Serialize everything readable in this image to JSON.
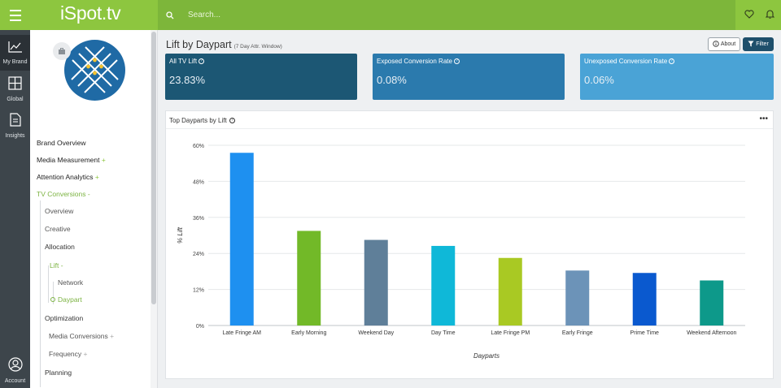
{
  "topbar": {
    "logo": "iSpot.tv",
    "search_placeholder": "Search..."
  },
  "rail": {
    "items": [
      {
        "label": "My Brand",
        "icon": "chart-line-icon"
      },
      {
        "label": "Global",
        "icon": "grid-icon"
      },
      {
        "label": "Insights",
        "icon": "document-icon"
      },
      {
        "label": "Account",
        "icon": "user-circle-icon"
      }
    ]
  },
  "sidebar": {
    "nav": {
      "brand_overview": "Brand Overview",
      "media_measurement": "Media Measurement",
      "attention_analytics": "Attention Analytics",
      "tv_conversions": "TV Conversions",
      "overview": "Overview",
      "creative": "Creative",
      "allocation": "Allocation",
      "lift": "Lift",
      "network": "Network",
      "daypart": "Daypart",
      "optimization": "Optimization",
      "media_conversions": "Media Conversions",
      "frequency": "Frequency",
      "planning": "Planning",
      "plus": "+",
      "minus": "-"
    }
  },
  "main": {
    "title": "Lift by Daypart",
    "subtitle": "(7 Day Attr. Window)",
    "about_label": "About",
    "filter_label": "Filter",
    "kpis": [
      {
        "label": "All TV Lift",
        "value": "23.83%",
        "color": "#1c5774"
      },
      {
        "label": "Exposed Conversion Rate",
        "value": "0.08%",
        "color": "#2b7aad"
      },
      {
        "label": "Unexposed Conversion Rate",
        "value": "0.06%",
        "color": "#4aa3d6"
      }
    ],
    "chart_title": "Top Dayparts by Lift",
    "chart_menu": "•••"
  },
  "chart_data": {
    "type": "bar",
    "title": "Top Dayparts by Lift",
    "xlabel": "Dayparts",
    "ylabel": "% Lift",
    "ylim": [
      0,
      60
    ],
    "yticks": [
      "0%",
      "12%",
      "24%",
      "36%",
      "48%",
      "60%"
    ],
    "grid": true,
    "categories": [
      "Late Fringe AM",
      "Early Morning",
      "Weekend Day",
      "Day Time",
      "Late Fringe PM",
      "Early Fringe",
      "Prime Time",
      "Weekend Afternoon"
    ],
    "values": [
      57.5,
      31.5,
      28.5,
      26.5,
      22.5,
      18.3,
      17.5,
      15.0
    ],
    "colors": [
      "#1e90f0",
      "#72b928",
      "#5f7f99",
      "#0fb8d8",
      "#a9c923",
      "#6c93b8",
      "#0a59cf",
      "#0d998a"
    ]
  }
}
